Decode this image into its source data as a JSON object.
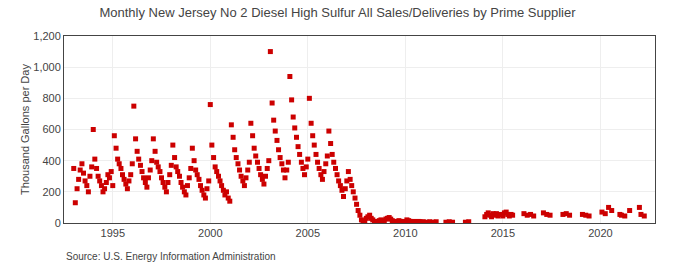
{
  "chart_data": {
    "type": "scatter",
    "title": "Monthly New Jersey No 2 Diesel High Sulfur All Sales/Deliveries by Prime Supplier",
    "ylabel": "Thousand Gallons per Day",
    "annotations": [
      "Source: U.S. Energy Information Administration"
    ],
    "color": "#cc0000",
    "marker": "square",
    "grid": true,
    "xlim": [
      1992.5,
      2022.8
    ],
    "xticks": [
      1995,
      2000,
      2005,
      2010,
      2015,
      2020
    ],
    "ylim": [
      0,
      1200
    ],
    "yticks": [
      0,
      200,
      400,
      600,
      800,
      {
        "value": 1000,
        "label": "1,000"
      },
      {
        "value": 1200,
        "label": "1,200"
      }
    ],
    "x": [
      1993.0,
      1993.08,
      1993.17,
      1993.25,
      1993.33,
      1993.42,
      1993.5,
      1993.58,
      1993.67,
      1993.75,
      1993.83,
      1993.92,
      1994.0,
      1994.08,
      1994.17,
      1994.25,
      1994.33,
      1994.42,
      1994.5,
      1994.58,
      1994.67,
      1994.75,
      1994.83,
      1994.92,
      1995.0,
      1995.08,
      1995.17,
      1995.25,
      1995.33,
      1995.42,
      1995.5,
      1995.58,
      1995.67,
      1995.75,
      1995.83,
      1995.92,
      1996.0,
      1996.08,
      1996.17,
      1996.25,
      1996.33,
      1996.42,
      1996.5,
      1996.58,
      1996.67,
      1996.75,
      1996.83,
      1996.92,
      1997.0,
      1997.08,
      1997.17,
      1997.25,
      1997.33,
      1997.42,
      1997.5,
      1997.58,
      1997.67,
      1997.75,
      1997.83,
      1997.92,
      1998.0,
      1998.08,
      1998.17,
      1998.25,
      1998.33,
      1998.42,
      1998.5,
      1998.58,
      1998.67,
      1998.75,
      1998.83,
      1998.92,
      1999.0,
      1999.08,
      1999.17,
      1999.25,
      1999.33,
      1999.42,
      1999.5,
      1999.58,
      1999.67,
      1999.75,
      1999.83,
      1999.92,
      2000.0,
      2000.08,
      2000.17,
      2000.25,
      2000.33,
      2000.42,
      2000.5,
      2000.58,
      2000.67,
      2000.75,
      2000.83,
      2000.92,
      2001.0,
      2001.08,
      2001.17,
      2001.25,
      2001.33,
      2001.42,
      2001.5,
      2001.58,
      2001.67,
      2001.75,
      2001.83,
      2001.92,
      2002.0,
      2002.08,
      2002.17,
      2002.25,
      2002.33,
      2002.42,
      2002.5,
      2002.58,
      2002.67,
      2002.75,
      2002.83,
      2002.92,
      2003.0,
      2003.08,
      2003.17,
      2003.25,
      2003.33,
      2003.42,
      2003.5,
      2003.58,
      2003.67,
      2003.75,
      2003.83,
      2003.92,
      2004.0,
      2004.08,
      2004.17,
      2004.25,
      2004.33,
      2004.42,
      2004.5,
      2004.58,
      2004.67,
      2004.75,
      2004.83,
      2004.92,
      2005.0,
      2005.08,
      2005.17,
      2005.25,
      2005.33,
      2005.42,
      2005.5,
      2005.58,
      2005.67,
      2005.75,
      2005.83,
      2005.92,
      2006.0,
      2006.08,
      2006.17,
      2006.25,
      2006.33,
      2006.42,
      2006.5,
      2006.58,
      2006.67,
      2006.75,
      2006.83,
      2006.92,
      2007.0,
      2007.08,
      2007.17,
      2007.25,
      2007.33,
      2007.42,
      2007.5,
      2007.58,
      2007.67,
      2007.75,
      2007.83,
      2007.92,
      2008.0,
      2008.08,
      2008.17,
      2008.25,
      2008.33,
      2008.42,
      2008.5,
      2008.58,
      2008.67,
      2008.75,
      2008.83,
      2008.92,
      2009.0,
      2009.08,
      2009.17,
      2009.25,
      2009.33,
      2009.42,
      2009.5,
      2009.58,
      2009.67,
      2009.75,
      2009.83,
      2009.92,
      2010.0,
      2010.08,
      2010.17,
      2010.25,
      2010.33,
      2010.42,
      2010.5,
      2010.58,
      2010.67,
      2010.75,
      2010.83,
      2010.92,
      2011.08,
      2011.25,
      2011.42,
      2011.58,
      2012.08,
      2012.25,
      2012.42,
      2013.08,
      2013.25,
      2014.08,
      2014.17,
      2014.25,
      2014.33,
      2014.42,
      2014.5,
      2014.58,
      2014.67,
      2014.75,
      2014.83,
      2015.0,
      2015.08,
      2015.17,
      2015.25,
      2015.33,
      2015.42,
      2015.5,
      2016.08,
      2016.25,
      2016.42,
      2016.58,
      2017.08,
      2017.25,
      2017.42,
      2018.08,
      2018.25,
      2018.42,
      2019.08,
      2019.25,
      2019.42,
      2020.08,
      2020.25,
      2020.42,
      2020.58,
      2021.0,
      2021.08,
      2021.25,
      2021.5,
      2022.0,
      2022.08,
      2022.25
    ],
    "values": [
      350,
      130,
      220,
      280,
      340,
      380,
      320,
      270,
      240,
      200,
      300,
      360,
      600,
      410,
      350,
      300,
      270,
      240,
      200,
      220,
      260,
      310,
      290,
      330,
      240,
      560,
      480,
      410,
      380,
      350,
      310,
      280,
      250,
      220,
      270,
      310,
      380,
      750,
      540,
      460,
      410,
      370,
      330,
      290,
      260,
      230,
      290,
      340,
      400,
      540,
      460,
      390,
      360,
      330,
      290,
      260,
      230,
      200,
      260,
      310,
      370,
      500,
      420,
      360,
      330,
      300,
      260,
      230,
      200,
      180,
      240,
      290,
      350,
      480,
      400,
      340,
      310,
      280,
      240,
      210,
      180,
      160,
      220,
      270,
      760,
      500,
      420,
      360,
      330,
      300,
      270,
      240,
      210,
      180,
      200,
      160,
      140,
      630,
      550,
      470,
      420,
      380,
      340,
      300,
      270,
      240,
      290,
      340,
      390,
      640,
      560,
      480,
      430,
      390,
      350,
      310,
      280,
      250,
      300,
      350,
      400,
      1100,
      770,
      660,
      590,
      530,
      470,
      420,
      380,
      340,
      290,
      340,
      390,
      940,
      790,
      680,
      610,
      550,
      490,
      440,
      390,
      350,
      310,
      360,
      410,
      800,
      640,
      560,
      500,
      440,
      390,
      350,
      310,
      280,
      330,
      380,
      430,
      590,
      510,
      440,
      390,
      350,
      310,
      270,
      240,
      210,
      170,
      220,
      270,
      330,
      280,
      240,
      200,
      160,
      120,
      80,
      50,
      20,
      10,
      5,
      30,
      40,
      50,
      30,
      20,
      10,
      5,
      10,
      15,
      20,
      15,
      10,
      25,
      30,
      35,
      25,
      15,
      10,
      5,
      10,
      15,
      10,
      5,
      10,
      0,
      20,
      15,
      10,
      5,
      10,
      5,
      8,
      10,
      8,
      5,
      8,
      5,
      8,
      5,
      8,
      5,
      8,
      5,
      5,
      8,
      40,
      55,
      65,
      50,
      40,
      60,
      50,
      60,
      45,
      55,
      45,
      65,
      70,
      55,
      45,
      55,
      50,
      60,
      50,
      55,
      45,
      65,
      55,
      50,
      55,
      60,
      50,
      55,
      50,
      45,
      70,
      60,
      100,
      80,
      55,
      50,
      45,
      80,
      100,
      55,
      45
    ]
  }
}
